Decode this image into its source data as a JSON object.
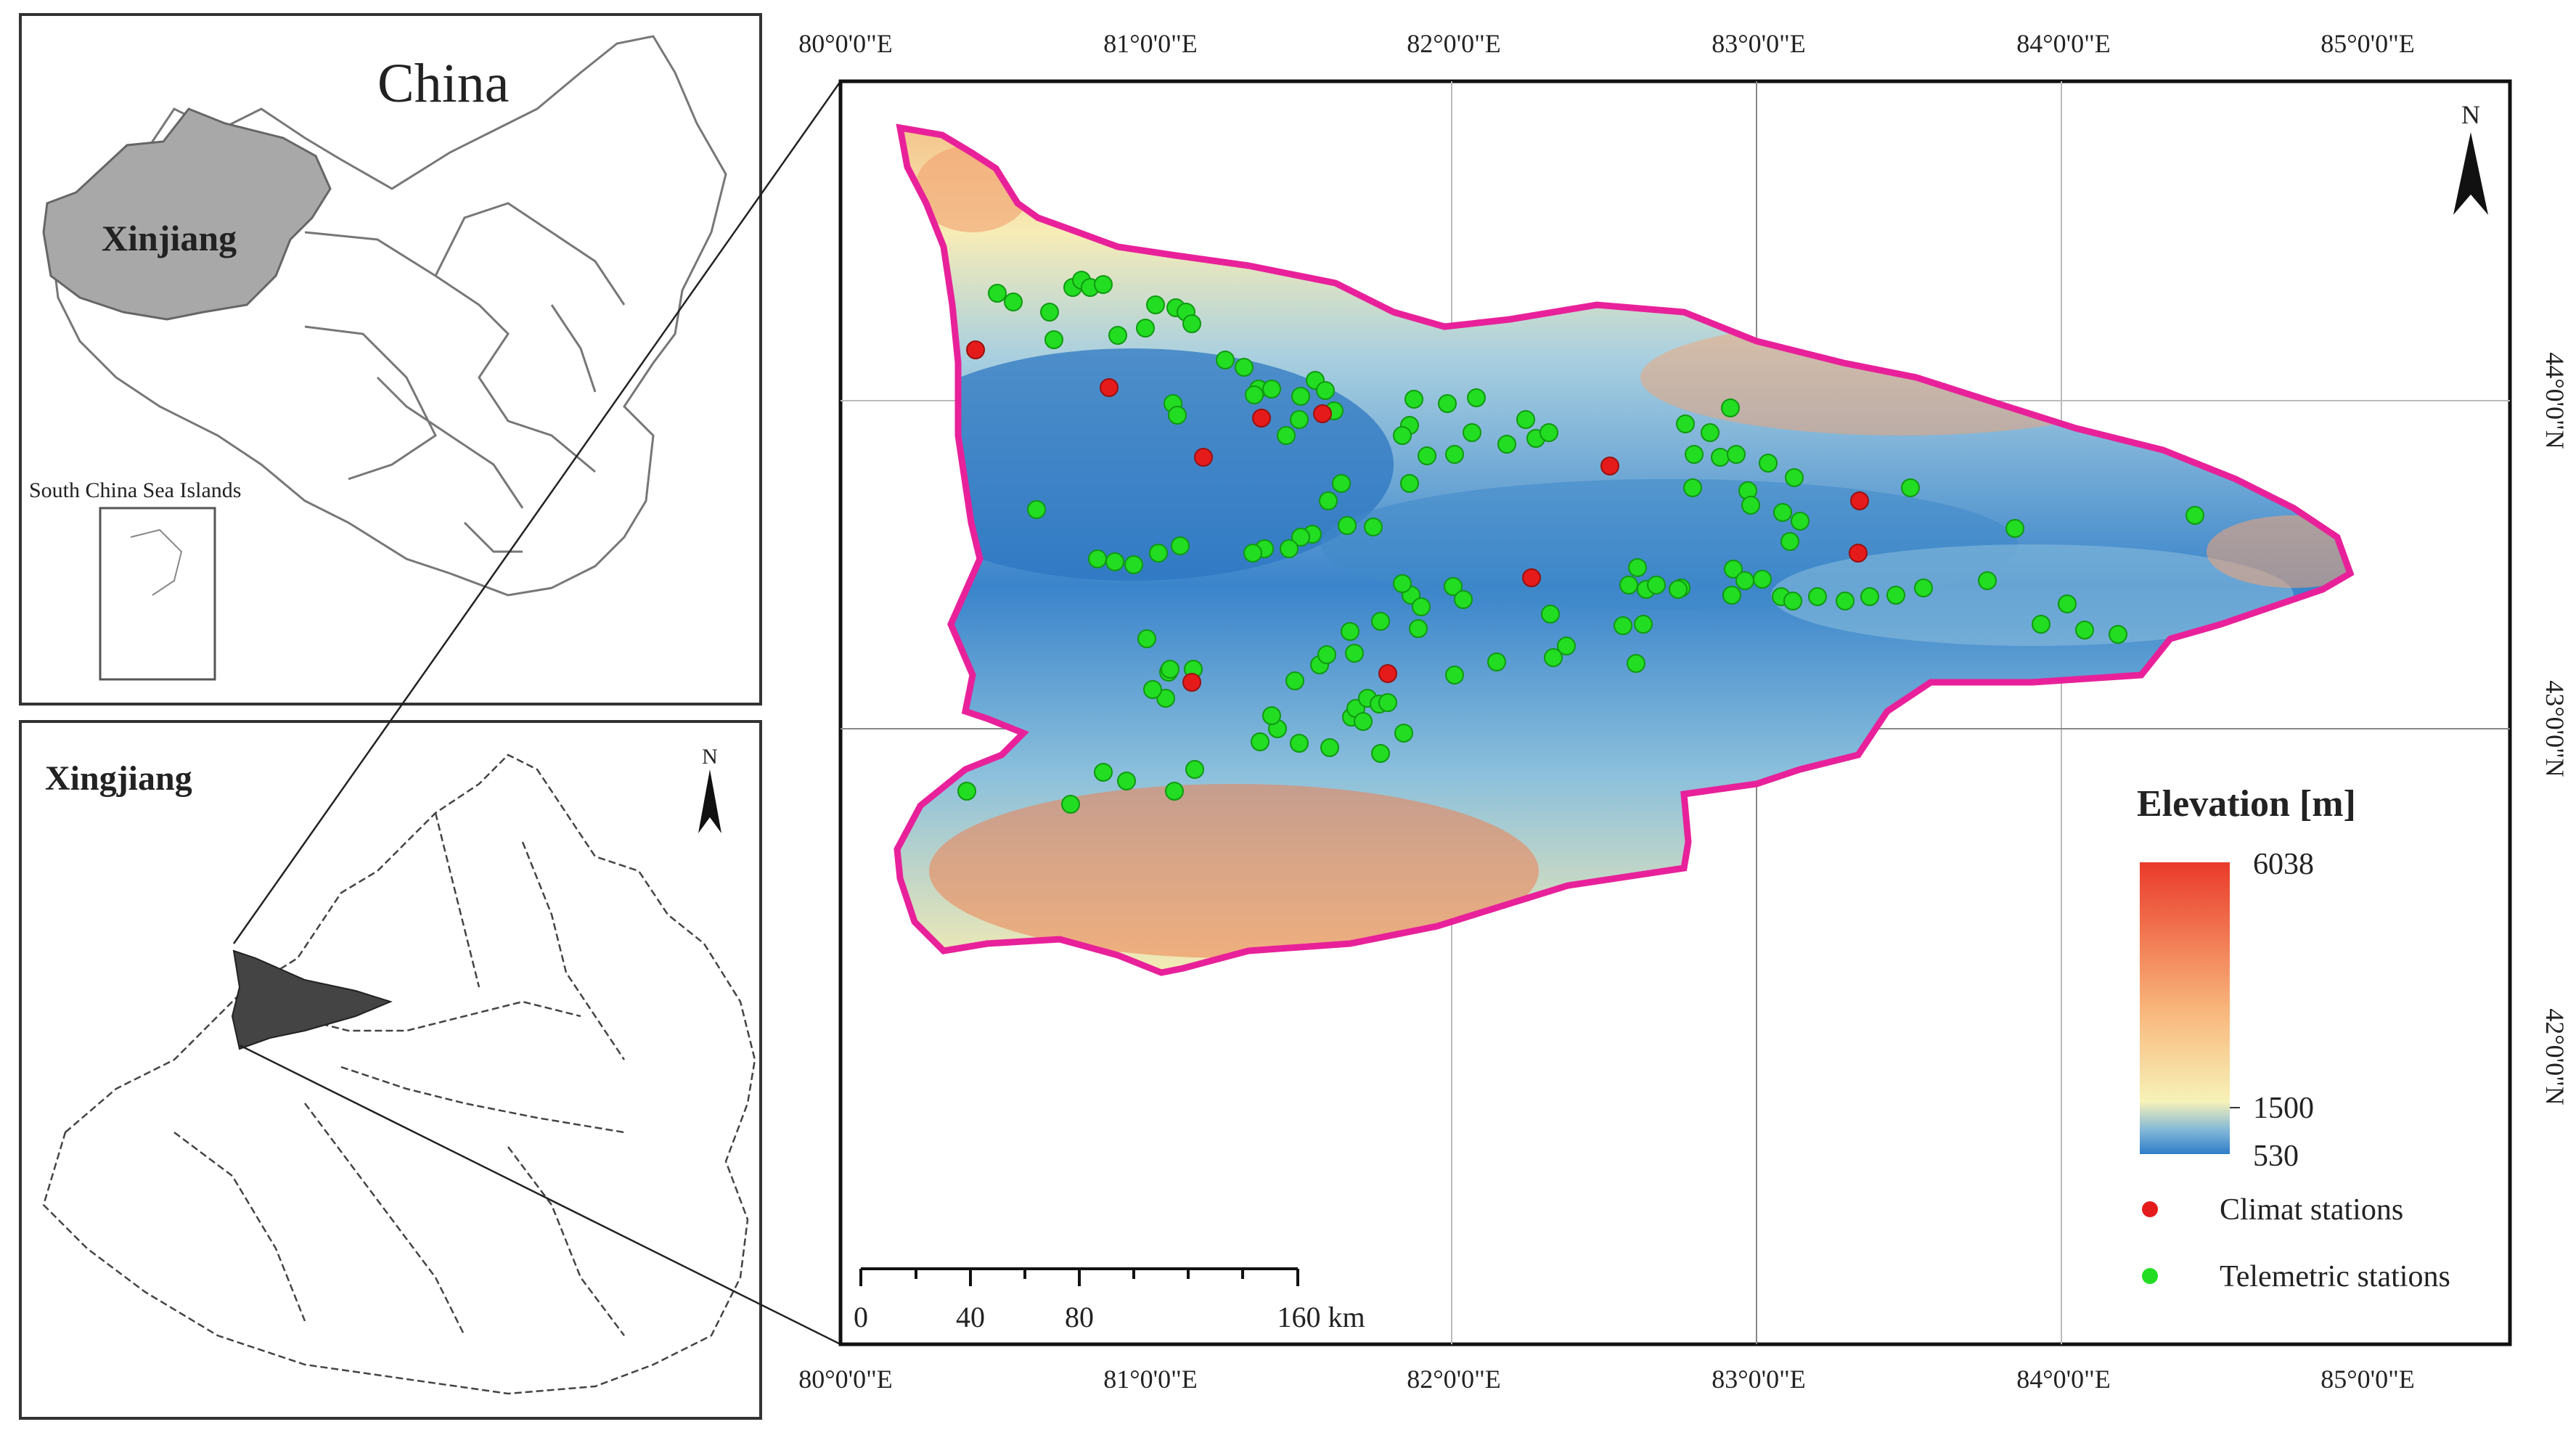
{
  "inset_china": {
    "country_label": "China",
    "region_label": "Xinjiang",
    "islands_label": "South China Sea Islands"
  },
  "inset_xinjiang": {
    "title": "Xingjiang",
    "north": "N"
  },
  "main_map": {
    "north": "N",
    "top_lon_labels": [
      "80°0'0\"E",
      "81°0'0\"E",
      "82°0'0\"E",
      "83°0'0\"E",
      "84°0'0\"E",
      "85°0'0\"E"
    ],
    "bottom_lon_labels": [
      "80°0'0\"E",
      "81°0'0\"E",
      "82°0'0\"E",
      "83°0'0\"E",
      "84°0'0\"E",
      "85°0'0\"E"
    ],
    "lat_labels": [
      "44°0'0\"N",
      "43°0'0\"N",
      "42°0'0\"N"
    ],
    "scale": {
      "ticks": [
        "0",
        "40",
        "80",
        "160 km"
      ]
    }
  },
  "legend": {
    "title": "Elevation [m]",
    "max": "6038",
    "mid": "1500",
    "min": "530",
    "climate_label": "Climat stations",
    "telemetric_label": "Telemetric stations"
  },
  "colors": {
    "boundary": "#e8219a",
    "climate": "#e51b1b",
    "telemetric": "#22dd22",
    "low": "#2f7dc8",
    "mid": "#f7f2b8",
    "high": "#e8412a"
  }
}
